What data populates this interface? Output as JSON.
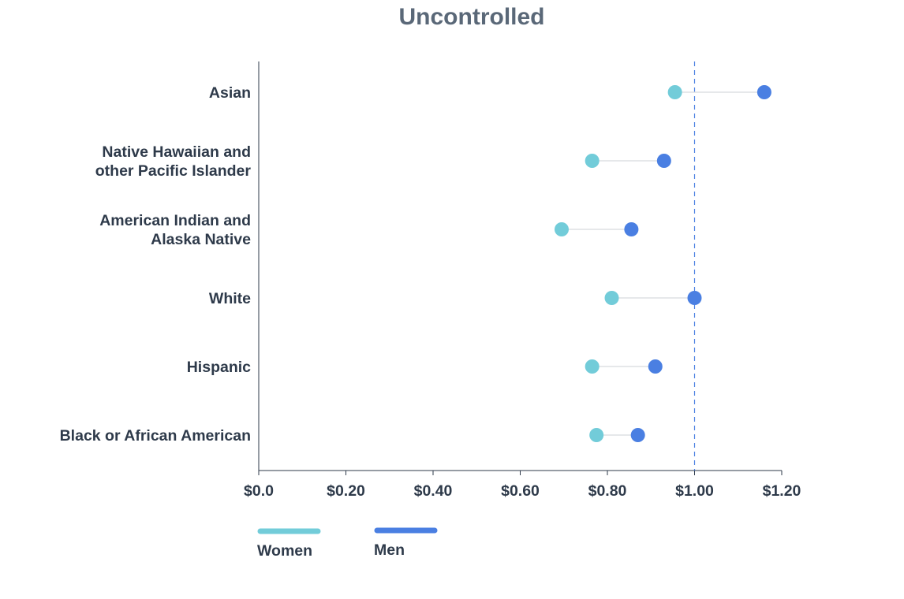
{
  "chart_data": {
    "type": "dumbbell",
    "title": "Uncontrolled",
    "categories": [
      "Asian",
      "Native Hawaiian and other Pacific Islander",
      "American Indian and Alaska Native",
      "White",
      "Hispanic",
      "Black or African American"
    ],
    "category_lines": [
      [
        "Asian"
      ],
      [
        "Native Hawaiian and",
        "other Pacific Islander"
      ],
      [
        "American Indian and",
        "Alaska Native"
      ],
      [
        "White"
      ],
      [
        "Hispanic"
      ],
      [
        "Black or African American"
      ]
    ],
    "series": [
      {
        "name": "Women",
        "color": "#72ccd9",
        "values": [
          0.955,
          0.765,
          0.695,
          0.81,
          0.765,
          0.775
        ]
      },
      {
        "name": "Men",
        "color": "#4a7fe2",
        "values": [
          1.16,
          0.93,
          0.855,
          1.0,
          0.91,
          0.87
        ]
      }
    ],
    "xlim": [
      0,
      1.2
    ],
    "x_ticks": [
      0,
      0.2,
      0.4,
      0.6,
      0.8,
      1.0,
      1.2
    ],
    "x_tick_labels": [
      "$0.0",
      "$0.20",
      "$0.40",
      "$0.60",
      "$0.80",
      "$1.00",
      "$1.20"
    ],
    "reference_line": 1.0,
    "reference_color": "#4a7fe2",
    "legend_position": "bottom-left",
    "grid": false
  }
}
